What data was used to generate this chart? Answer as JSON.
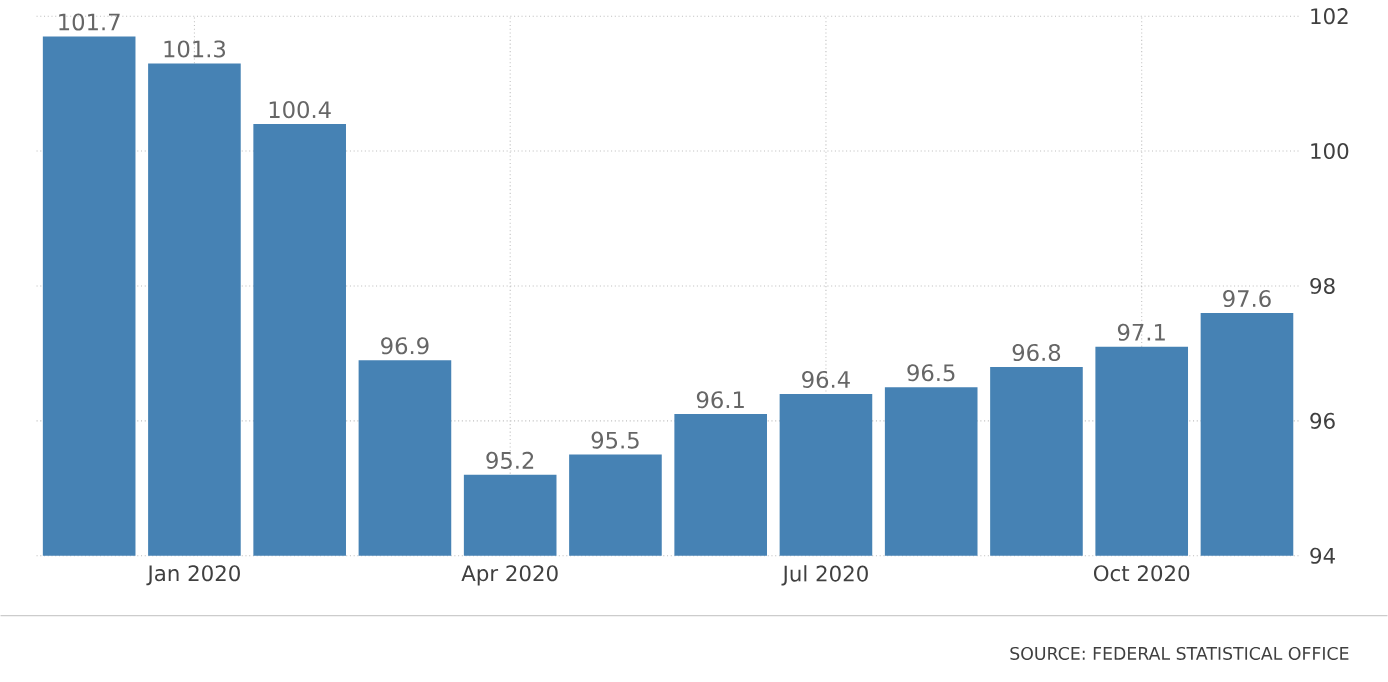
{
  "chart_data": {
    "type": "bar",
    "categories": [
      null,
      "Jan 2020",
      null,
      null,
      "Apr 2020",
      null,
      null,
      "Jul 2020",
      null,
      null,
      "Oct 2020",
      null
    ],
    "values": [
      101.7,
      101.3,
      100.4,
      96.9,
      95.2,
      95.5,
      96.1,
      96.4,
      96.5,
      96.8,
      97.1,
      97.6
    ],
    "color": "#4682b4",
    "ylim": [
      94,
      102
    ],
    "yticks": [
      94,
      96,
      98,
      100,
      102
    ],
    "grid": true,
    "data_labels": true,
    "annotations": [
      "SOURCE: FEDERAL STATISTICAL OFFICE"
    ]
  }
}
